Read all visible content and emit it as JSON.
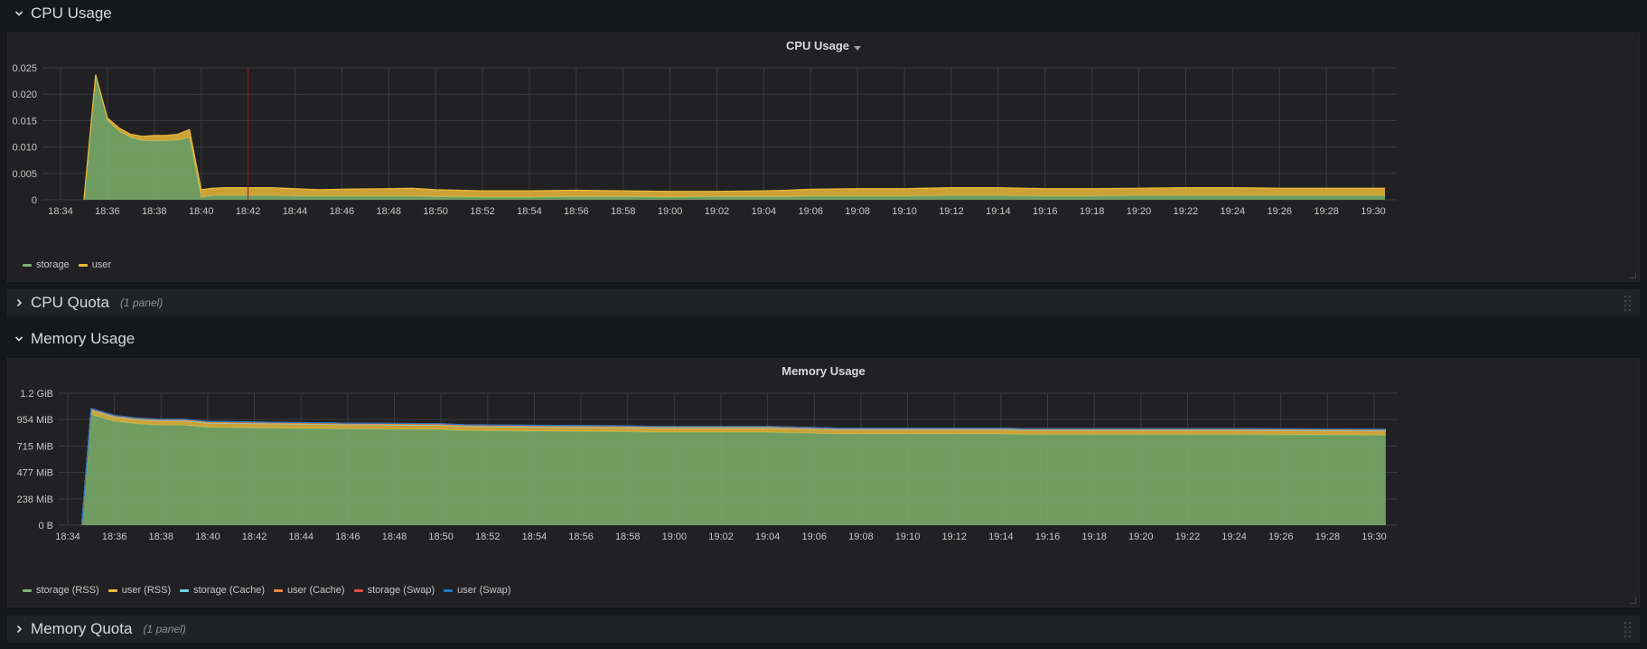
{
  "rows": {
    "cpu_usage": {
      "title": "CPU Usage"
    },
    "cpu_quota": {
      "title": "CPU Quota",
      "meta": "(1 panel)"
    },
    "memory_usage": {
      "title": "Memory Usage"
    },
    "memory_quota": {
      "title": "Memory Quota",
      "meta": "(1 panel)"
    }
  },
  "panels": {
    "cpu": {
      "title": "CPU Usage"
    },
    "memory": {
      "title": "Memory Usage"
    }
  },
  "colors": {
    "storage": "#7eb26d",
    "user": "#eab839",
    "storage_cache": "#6ed0e0",
    "user_cache": "#ef843c",
    "storage_swap": "#e24d42",
    "user_swap": "#1f78c1",
    "annotation": "#8b1a1a"
  },
  "chart_data": [
    {
      "type": "area",
      "title": "CPU Usage",
      "stacked": true,
      "x": [
        "18:34",
        "18:35",
        "18:35.5",
        "18:36",
        "18:36.5",
        "18:37",
        "18:37.5",
        "18:38",
        "18:38.5",
        "18:39",
        "18:39.5",
        "18:40",
        "18:40.5",
        "18:41",
        "18:42",
        "18:43",
        "18:44",
        "18:45",
        "18:46",
        "18:48",
        "18:49",
        "18:50",
        "18:52",
        "18:54",
        "18:56",
        "18:58",
        "19:00",
        "19:02",
        "19:04",
        "19:05",
        "19:06",
        "19:08",
        "19:10",
        "19:12",
        "19:14",
        "19:16",
        "19:18",
        "19:20",
        "19:22",
        "19:24",
        "19:26",
        "19:28",
        "19:30",
        "19:30.5"
      ],
      "x_ticks": [
        "18:34",
        "18:36",
        "18:38",
        "18:40",
        "18:42",
        "18:44",
        "18:46",
        "18:48",
        "18:50",
        "18:52",
        "18:54",
        "18:56",
        "18:58",
        "19:00",
        "19:02",
        "19:04",
        "19:06",
        "19:08",
        "19:10",
        "19:12",
        "19:14",
        "19:16",
        "19:18",
        "19:20",
        "19:22",
        "19:24",
        "19:26",
        "19:28",
        "19:30"
      ],
      "x_minutes": [
        0,
        1,
        1.5,
        2,
        2.5,
        3,
        3.5,
        4,
        4.5,
        5,
        5.5,
        6,
        6.5,
        7,
        8,
        9,
        10,
        11,
        12,
        14,
        15,
        16,
        18,
        20,
        22,
        24,
        26,
        28,
        30,
        31,
        32,
        34,
        36,
        38,
        40,
        42,
        44,
        46,
        48,
        50,
        52,
        54,
        56,
        56.5
      ],
      "series": [
        {
          "name": "storage",
          "values": [
            null,
            0,
            0.0235,
            0.015,
            0.013,
            0.0118,
            0.0112,
            0.0112,
            0.0112,
            0.0113,
            0.0118,
            0.0005,
            0.0008,
            0.0008,
            0.0008,
            0.0008,
            0.0007,
            0.0007,
            0.0007,
            0.0007,
            0.0007,
            0.0006,
            0.0005,
            0.0005,
            0.0006,
            0.0006,
            0.0005,
            0.0006,
            0.0006,
            0.0006,
            0.0007,
            0.0007,
            0.0007,
            0.0008,
            0.0008,
            0.0007,
            0.0007,
            0.0008,
            0.0008,
            0.0008,
            0.0008,
            0.0008,
            0.0008,
            0.0008
          ]
        },
        {
          "name": "user",
          "values": [
            null,
            0,
            0.0002,
            0.0005,
            0.0006,
            0.0006,
            0.0008,
            0.001,
            0.001,
            0.0011,
            0.0015,
            0.0014,
            0.0014,
            0.0015,
            0.0015,
            0.0015,
            0.0014,
            0.0012,
            0.0013,
            0.0014,
            0.0015,
            0.0013,
            0.0012,
            0.0012,
            0.0012,
            0.0011,
            0.0011,
            0.001,
            0.0011,
            0.0012,
            0.0013,
            0.0014,
            0.0014,
            0.0015,
            0.0015,
            0.0014,
            0.0014,
            0.0014,
            0.0015,
            0.0015,
            0.0014,
            0.0014,
            0.0014,
            0.0014
          ]
        }
      ],
      "y_ticks": [
        "0",
        "0.005",
        "0.010",
        "0.015",
        "0.020",
        "0.025"
      ],
      "ylim": [
        0,
        0.025
      ],
      "annotation_time": "18:42",
      "legend": [
        "storage",
        "user"
      ],
      "legend_placement": "bottom-left",
      "grid": true
    },
    {
      "type": "area",
      "title": "Memory Usage",
      "stacked": true,
      "x_ticks": [
        "18:34",
        "18:36",
        "18:38",
        "18:40",
        "18:42",
        "18:44",
        "18:46",
        "18:48",
        "18:50",
        "18:52",
        "18:54",
        "18:56",
        "18:58",
        "19:00",
        "19:02",
        "19:04",
        "19:06",
        "19:08",
        "19:10",
        "19:12",
        "19:14",
        "19:16",
        "19:18",
        "19:20",
        "19:22",
        "19:24",
        "19:26",
        "19:28",
        "19:30"
      ],
      "x_minutes": [
        0.6,
        1.0,
        2.0,
        3.0,
        4.0,
        5.0,
        6.0,
        8.0,
        12.0,
        16.0,
        17.0,
        20.0,
        24.0,
        25.0,
        30.0,
        32.0,
        33.0,
        40.0,
        41.0,
        48.0,
        50.0,
        56.0,
        56.5
      ],
      "y_ticks": [
        "0 B",
        "238 MiB",
        "477 MiB",
        "715 MiB",
        "954 MiB",
        "1.2 GiB"
      ],
      "y_tick_values_mib": [
        0,
        238,
        477,
        715,
        954,
        1192
      ],
      "ylim_mib": [
        0,
        1192
      ],
      "series": [
        {
          "name": "storage (RSS)",
          "values_mib": [
            0,
            1000,
            940,
            915,
            905,
            905,
            885,
            880,
            870,
            865,
            855,
            850,
            845,
            840,
            840,
            830,
            825,
            825,
            820,
            820,
            820,
            815,
            815
          ]
        },
        {
          "name": "user (RSS)",
          "values_mib": [
            0,
            38,
            37,
            37,
            37,
            37,
            37,
            37,
            37,
            37,
            37,
            37,
            37,
            37,
            37,
            37,
            37,
            37,
            37,
            37,
            37,
            37,
            37
          ]
        },
        {
          "name": "storage (Cache)",
          "values_mib": [
            0,
            2,
            2,
            2,
            2,
            2,
            2,
            2,
            2,
            2,
            2,
            2,
            2,
            2,
            2,
            2,
            2,
            2,
            2,
            2,
            2,
            2,
            2
          ]
        },
        {
          "name": "user (Cache)",
          "values_mib": [
            0,
            8,
            8,
            8,
            8,
            8,
            8,
            8,
            8,
            8,
            8,
            8,
            8,
            8,
            8,
            8,
            8,
            8,
            8,
            8,
            8,
            8,
            8
          ]
        },
        {
          "name": "storage (Swap)",
          "values_mib": [
            0,
            6,
            5,
            5,
            5,
            5,
            5,
            5,
            5,
            5,
            5,
            5,
            5,
            5,
            5,
            5,
            5,
            5,
            5,
            5,
            5,
            5,
            5
          ]
        },
        {
          "name": "user (Swap)",
          "values_mib": [
            0,
            0,
            0,
            0,
            0,
            0,
            0,
            0,
            0,
            0,
            0,
            0,
            0,
            0,
            0,
            0,
            0,
            0,
            0,
            0,
            0,
            0,
            0
          ]
        }
      ],
      "legend": [
        "storage (RSS)",
        "user (RSS)",
        "storage (Cache)",
        "user (Cache)",
        "storage (Swap)",
        "user (Swap)"
      ],
      "legend_placement": "bottom-left",
      "grid": true
    }
  ]
}
